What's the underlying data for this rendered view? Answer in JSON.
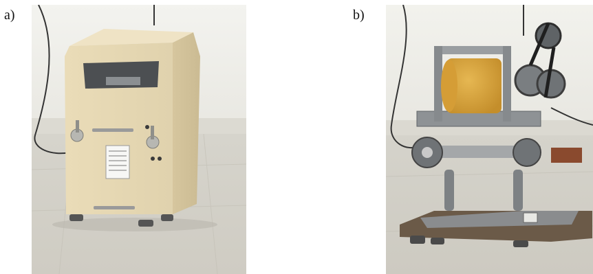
{
  "figure": {
    "panels": [
      {
        "label": "a)",
        "description_icon": "closed-machine-photo",
        "colors": {
          "housing": "#E6D8B4",
          "wall": "#F1F1EC",
          "floor": "#D9D7D0"
        }
      },
      {
        "label": "b)",
        "description_icon": "open-machine-photo",
        "colors": {
          "drum": "#D9A43A",
          "frame": "#8E9295",
          "wall": "#F0F0EB",
          "floor": "#D8D6CF"
        }
      }
    ]
  }
}
